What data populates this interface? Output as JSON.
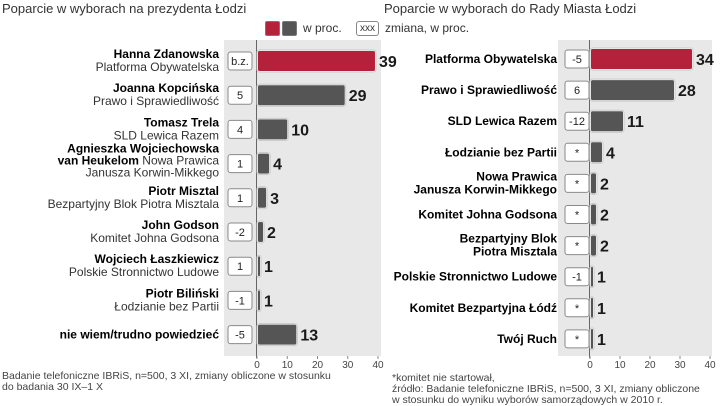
{
  "legend": {
    "percent_label": "w proc.",
    "change_box": "xxx",
    "change_label": "zmiana, w proc.",
    "colors": {
      "highlight": "#b5203a",
      "bar": "#555555",
      "panel": "#e8e8e8"
    }
  },
  "chart_data": [
    {
      "type": "bar",
      "title": "Poparcie w wyborach na prezydenta Łodzi",
      "xlim": [
        0,
        40
      ],
      "ticks": [
        0,
        10,
        20,
        30,
        40
      ],
      "rows": [
        {
          "name": "Hanna Zdanowska",
          "party": "Platforma Obywatelska",
          "value": 39,
          "change": "b.z.",
          "highlight": true
        },
        {
          "name": "Joanna Kopcińska",
          "party": "Prawo i Sprawiedliwość",
          "value": 29,
          "change": "5"
        },
        {
          "name": "Tomasz Trela",
          "party": "SLD Lewica Razem",
          "value": 10,
          "change": "4"
        },
        {
          "name": "Agnieszka Wojciechowska",
          "name2": "van Heukelom",
          "party": "Nowa Prawica",
          "party2": "Janusza Korwin-Mikkego",
          "value": 4,
          "change": "1"
        },
        {
          "name": "Piotr Misztal",
          "party": "Bezpartyjny Blok Piotra Misztala",
          "value": 3,
          "change": "1"
        },
        {
          "name": "John Godson",
          "party": "Komitet Johna Godsona",
          "value": 2,
          "change": "-2"
        },
        {
          "name": "Wojciech Łaszkiewicz",
          "party": "Polskie Stronnictwo Ludowe",
          "value": 1,
          "change": "1"
        },
        {
          "name": "Piotr Biliński",
          "party": "Łodzianie bez Partii",
          "value": 1,
          "change": "-1"
        },
        {
          "name": "nie wiem/trudno powiedzieć",
          "party": "",
          "value": 13,
          "change": "-5"
        }
      ],
      "notes": [
        "Badanie telefoniczne IBRiS, n=500, 3 XI, zmiany obliczone w stosunku",
        "do badania 30 IX–1 X"
      ]
    },
    {
      "type": "bar",
      "title": "Poparcie w wyborach do Rady Miasta Łodzi",
      "xlim": [
        0,
        40
      ],
      "ticks": [
        0,
        10,
        20,
        30,
        40
      ],
      "rows": [
        {
          "label": "Platforma Obywatelska",
          "value": 34,
          "change": "-5",
          "highlight": true
        },
        {
          "label": "Prawo i Sprawiedliwość",
          "value": 28,
          "change": "6"
        },
        {
          "label": "SLD Lewica Razem",
          "value": 11,
          "change": "-12"
        },
        {
          "label": "Łodzianie bez Partii",
          "value": 4,
          "change": "*"
        },
        {
          "label": "Nowa Prawica",
          "label2": "Janusza Korwin-Mikkego",
          "value": 2,
          "change": "*"
        },
        {
          "label": "Komitet Johna Godsona",
          "value": 2,
          "change": "*"
        },
        {
          "label": "Bezpartyjny Blok",
          "label2": "Piotra Misztala",
          "value": 2,
          "change": "*"
        },
        {
          "label": "Polskie Stronnictwo Ludowe",
          "value": 1,
          "change": "-1"
        },
        {
          "label": "Komitet Bezpartyjna Łódź",
          "value": 1,
          "change": "*"
        },
        {
          "label": "Twój Ruch",
          "value": 1,
          "change": "*"
        }
      ],
      "notes": [
        "*komitet nie startował,",
        "źródło: Badanie telefoniczne IBRiS, n=500, 3 XI, zmiany obliczone",
        "w stosunku do wyniku wyborów samorządowych w 2010 r."
      ]
    }
  ]
}
